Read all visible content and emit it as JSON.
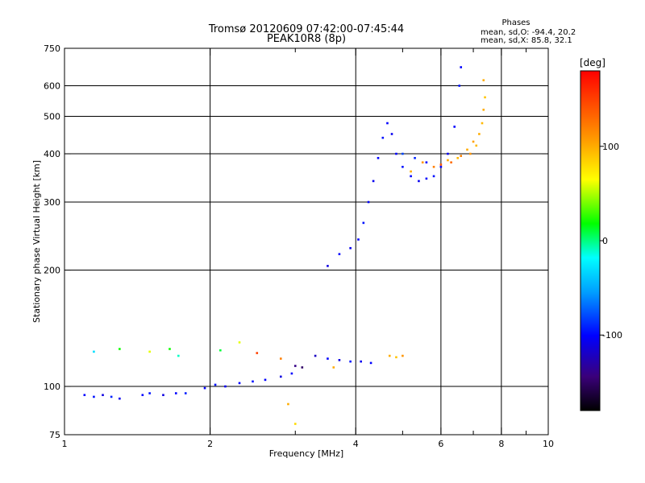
{
  "chart_data": {
    "type": "scatter",
    "title": "Tromsø 20120609 07:42:00-07:45:44",
    "subtitle": "PEAK10R8 (8p)",
    "stats": {
      "heading": "Phases",
      "line_o": "mean, sd,O: -94.4, 20.2",
      "line_x": "mean, sd,X:  85.8, 32.1"
    },
    "xlabel": "Frequency [MHz]",
    "ylabel": "Stationary phase Virtual Height [km]",
    "x_scale": "log",
    "y_scale": "log",
    "xlim": [
      1,
      10
    ],
    "ylim": [
      75,
      750
    ],
    "x_ticks": [
      1,
      2,
      4,
      6,
      8,
      10
    ],
    "x_tick_labels": [
      "1",
      "2",
      "4",
      "6",
      "8",
      "10"
    ],
    "x_gridlines": [
      2,
      4,
      6,
      8
    ],
    "y_ticks": [
      75,
      100,
      200,
      300,
      400,
      500,
      600,
      750
    ],
    "y_tick_labels": [
      "75",
      "100",
      "200",
      "300",
      "400",
      "500",
      "600",
      "750"
    ],
    "y_gridlines": [
      100,
      200,
      300,
      400,
      500,
      600
    ],
    "grid": true,
    "colorbar": {
      "label": "[deg]",
      "range": [
        -180,
        180
      ],
      "ticks": [
        100,
        0,
        -100
      ],
      "tick_labels": [
        "100",
        "0",
        "-100"
      ]
    },
    "series": [
      {
        "points": [
          [
            1.1,
            95,
            -100
          ],
          [
            1.15,
            94,
            -95
          ],
          [
            1.2,
            95,
            -110
          ],
          [
            1.25,
            94,
            -90
          ],
          [
            1.3,
            93,
            -105
          ],
          [
            1.45,
            95,
            -100
          ],
          [
            1.5,
            96,
            -95
          ],
          [
            1.6,
            95,
            -110
          ],
          [
            1.7,
            96,
            -100
          ],
          [
            1.78,
            96,
            -92
          ],
          [
            1.95,
            99,
            -100
          ],
          [
            2.05,
            101,
            -95
          ],
          [
            2.15,
            100,
            -105
          ],
          [
            2.3,
            102,
            -100
          ],
          [
            2.45,
            103,
            -95
          ],
          [
            2.6,
            104,
            -100
          ],
          [
            2.8,
            106,
            -110
          ],
          [
            2.95,
            108,
            -100
          ],
          [
            3.0,
            113,
            -140
          ],
          [
            3.1,
            112,
            -150
          ],
          [
            3.3,
            120,
            -120
          ],
          [
            3.5,
            118,
            -100
          ],
          [
            3.7,
            117,
            -110
          ],
          [
            3.9,
            116,
            -95
          ],
          [
            4.1,
            116,
            -105
          ],
          [
            4.3,
            115,
            -100
          ],
          [
            3.5,
            205,
            -110
          ],
          [
            3.7,
            220,
            -100
          ],
          [
            3.9,
            228,
            -105
          ],
          [
            4.05,
            240,
            -100
          ],
          [
            4.15,
            265,
            -95
          ],
          [
            4.25,
            300,
            -100
          ],
          [
            4.35,
            340,
            -105
          ],
          [
            4.45,
            390,
            -100
          ],
          [
            4.55,
            440,
            -95
          ],
          [
            4.65,
            480,
            -100
          ],
          [
            4.75,
            450,
            -105
          ],
          [
            4.85,
            400,
            -100
          ],
          [
            5.0,
            370,
            -95
          ],
          [
            5.2,
            350,
            -100
          ],
          [
            5.4,
            340,
            -105
          ],
          [
            5.6,
            345,
            -100
          ],
          [
            5.8,
            350,
            -95
          ],
          [
            6.0,
            370,
            -100
          ],
          [
            6.2,
            400,
            -105
          ],
          [
            6.4,
            470,
            -100
          ],
          [
            6.55,
            600,
            -95
          ],
          [
            6.6,
            670,
            -100
          ],
          [
            5.0,
            400,
            -80
          ],
          [
            5.3,
            390,
            -90
          ],
          [
            5.6,
            380,
            -100
          ]
        ]
      },
      {
        "points": [
          [
            1.15,
            123,
            -30
          ],
          [
            1.3,
            125,
            20
          ],
          [
            1.5,
            123,
            60
          ],
          [
            1.65,
            125,
            20
          ],
          [
            1.72,
            120,
            -10
          ],
          [
            2.1,
            124,
            10
          ],
          [
            2.3,
            130,
            60
          ],
          [
            2.5,
            122,
            150
          ],
          [
            2.8,
            118,
            120
          ],
          [
            2.9,
            90,
            100
          ],
          [
            3.0,
            80,
            80
          ],
          [
            3.6,
            112,
            100
          ],
          [
            4.7,
            120,
            100
          ],
          [
            4.85,
            119,
            90
          ],
          [
            5.0,
            120,
            110
          ],
          [
            5.2,
            360,
            100
          ],
          [
            5.5,
            380,
            110
          ],
          [
            5.8,
            370,
            120
          ],
          [
            6.2,
            385,
            100
          ],
          [
            6.5,
            390,
            95
          ],
          [
            6.8,
            410,
            100
          ],
          [
            7.0,
            430,
            105
          ],
          [
            7.2,
            450,
            100
          ],
          [
            7.3,
            480,
            95
          ],
          [
            7.35,
            520,
            100
          ],
          [
            7.4,
            560,
            90
          ],
          [
            7.35,
            620,
            100
          ],
          [
            6.9,
            400,
            110
          ],
          [
            7.1,
            420,
            95
          ],
          [
            6.6,
            395,
            120
          ],
          [
            6.3,
            380,
            130
          ],
          [
            6.0,
            375,
            140
          ]
        ]
      }
    ]
  }
}
